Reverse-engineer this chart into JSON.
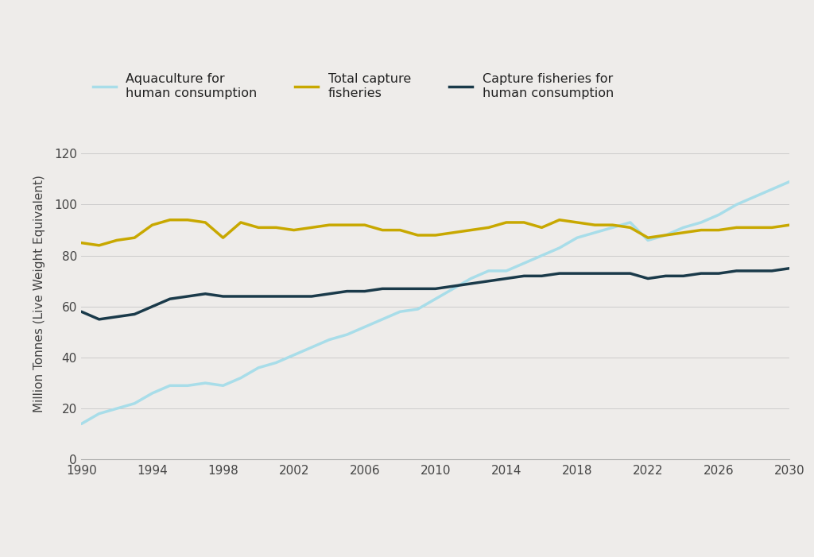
{
  "background_color": "#eeecea",
  "bottom_bar_color": "#177a80",
  "plot_bg_color": "#eeecea",
  "ylabel": "Million Tonnes (Live Weight Equivalent)",
  "ylim": [
    0,
    130
  ],
  "yticks": [
    0,
    20,
    40,
    60,
    80,
    100,
    120
  ],
  "xlim": [
    1990,
    2030
  ],
  "xticks": [
    1990,
    1994,
    1998,
    2002,
    2006,
    2010,
    2014,
    2018,
    2022,
    2026,
    2030
  ],
  "grid_color": "#cccccc",
  "line_aquaculture_color": "#a8dde9",
  "line_total_capture_color": "#c8a800",
  "line_capture_fisheries_color": "#1a3a4a",
  "legend_aquaculture": "Aquaculture for\nhuman consumption",
  "legend_total_capture": "Total capture\nfisheries",
  "legend_capture_fisheries": "Capture fisheries for\nhuman consumption",
  "years_all": [
    1990,
    1991,
    1992,
    1993,
    1994,
    1995,
    1996,
    1997,
    1998,
    1999,
    2000,
    2001,
    2002,
    2003,
    2004,
    2005,
    2006,
    2007,
    2008,
    2009,
    2010,
    2011,
    2012,
    2013,
    2014,
    2015,
    2016,
    2017,
    2018,
    2019,
    2020,
    2021,
    2022,
    2023,
    2024,
    2025,
    2026,
    2027,
    2028,
    2029,
    2030
  ],
  "aquaculture_all": [
    14,
    18,
    20,
    22,
    26,
    29,
    29,
    30,
    29,
    32,
    36,
    38,
    41,
    44,
    47,
    49,
    52,
    55,
    58,
    59,
    63,
    67,
    71,
    74,
    74,
    77,
    80,
    83,
    87,
    89,
    91,
    93,
    86,
    88,
    91,
    93,
    96,
    100,
    103,
    106,
    109
  ],
  "total_capture_all": [
    85,
    84,
    86,
    87,
    92,
    94,
    94,
    93,
    87,
    93,
    91,
    91,
    90,
    91,
    92,
    92,
    92,
    90,
    90,
    88,
    88,
    89,
    90,
    91,
    93,
    93,
    91,
    94,
    93,
    92,
    92,
    91,
    87,
    88,
    89,
    90,
    90,
    91,
    91,
    91,
    92
  ],
  "capture_fisheries_all": [
    58,
    55,
    56,
    57,
    60,
    63,
    64,
    65,
    64,
    64,
    64,
    64,
    64,
    64,
    65,
    66,
    66,
    67,
    67,
    67,
    67,
    68,
    69,
    70,
    71,
    72,
    72,
    73,
    73,
    73,
    73,
    73,
    71,
    72,
    72,
    73,
    73,
    74,
    74,
    74,
    75
  ]
}
